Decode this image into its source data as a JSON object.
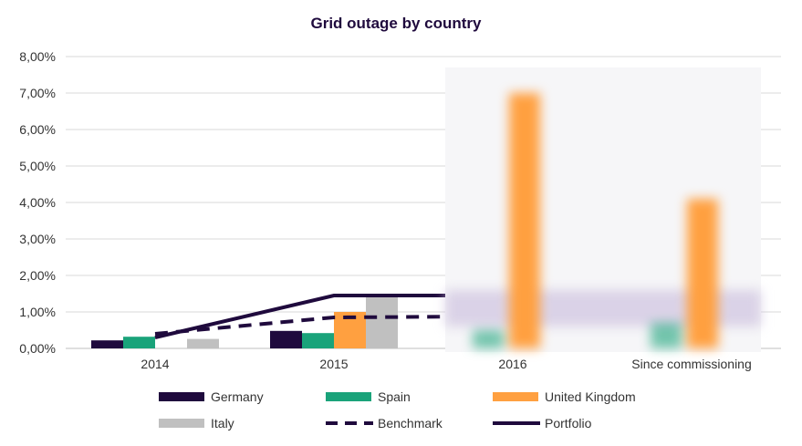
{
  "chart_data": {
    "type": "bar",
    "title": "Grid outage by country",
    "xlabel": "",
    "ylabel": "",
    "categories": [
      "2014",
      "2015",
      "2016",
      "Since commissioning"
    ],
    "ylim": [
      0,
      8
    ],
    "yticks": [
      "0,00%",
      "1,00%",
      "2,00%",
      "3,00%",
      "4,00%",
      "5,00%",
      "6,00%",
      "7,00%",
      "8,00%"
    ],
    "grid": true,
    "legend_position": "bottom",
    "series": [
      {
        "name": "Germany",
        "kind": "bar",
        "color": "#1f0a3d",
        "values": [
          0.22,
          0.48,
          null,
          null
        ]
      },
      {
        "name": "Spain",
        "kind": "bar",
        "color": "#1aa37a",
        "values": [
          0.32,
          0.42,
          0.5,
          0.7
        ]
      },
      {
        "name": "United Kingdom",
        "kind": "bar",
        "color": "#ffa040",
        "values": [
          null,
          1.0,
          7.0,
          4.1
        ]
      },
      {
        "name": "Italy",
        "kind": "bar",
        "color": "#c0c0c0",
        "values": [
          0.26,
          1.45,
          null,
          null
        ]
      },
      {
        "name": "Benchmark",
        "kind": "line",
        "style": "dashed",
        "color": "#1f0a3d",
        "values": [
          0.4,
          0.85,
          0.88,
          0.75
        ]
      },
      {
        "name": "Portfolio",
        "kind": "line",
        "style": "solid",
        "color": "#1f0a3d",
        "values": [
          0.3,
          1.45,
          1.45,
          0.75
        ]
      }
    ],
    "legend": [
      {
        "name": "Germany",
        "color": "#1f0a3d",
        "style": "bar"
      },
      {
        "name": "Spain",
        "color": "#1aa37a",
        "style": "bar"
      },
      {
        "name": "United Kingdom",
        "color": "#ffa040",
        "style": "bar"
      },
      {
        "name": "Italy",
        "color": "#c0c0c0",
        "style": "bar"
      },
      {
        "name": "Benchmark",
        "color": "#1f0a3d",
        "style": "dashed"
      },
      {
        "name": "Portfolio",
        "color": "#1f0a3d",
        "style": "solid"
      }
    ]
  }
}
